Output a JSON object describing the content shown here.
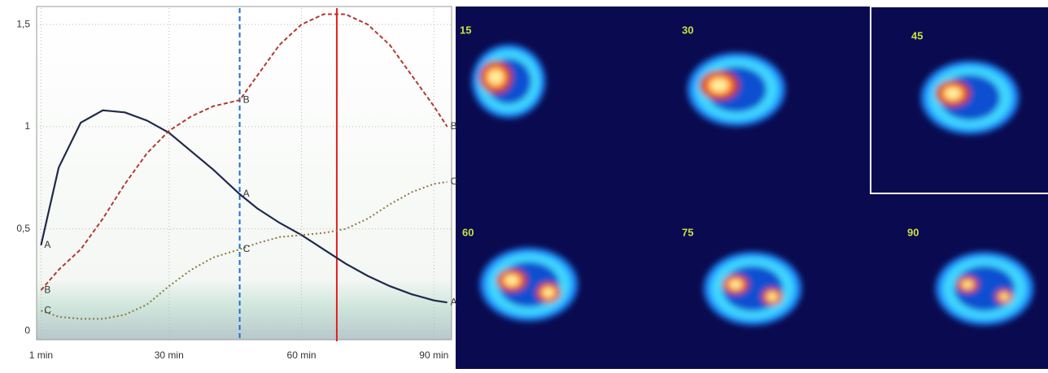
{
  "chart_data": {
    "type": "line",
    "x": [
      1,
      5,
      10,
      15,
      20,
      25,
      30,
      35,
      40,
      46,
      50,
      55,
      60,
      65,
      70,
      75,
      80,
      85,
      90,
      93
    ],
    "series": [
      {
        "name": "A",
        "color": "#1f2a4a",
        "dash": "",
        "values": [
          0.42,
          0.8,
          1.02,
          1.08,
          1.07,
          1.03,
          0.97,
          0.88,
          0.79,
          0.67,
          0.6,
          0.53,
          0.47,
          0.4,
          0.33,
          0.27,
          0.22,
          0.18,
          0.15,
          0.14
        ]
      },
      {
        "name": "B",
        "color": "#b33a2e",
        "dash": "5 3",
        "values": [
          0.2,
          0.3,
          0.4,
          0.55,
          0.72,
          0.87,
          0.98,
          1.05,
          1.1,
          1.13,
          1.25,
          1.4,
          1.5,
          1.55,
          1.55,
          1.5,
          1.4,
          1.25,
          1.1,
          1.0
        ]
      },
      {
        "name": "C",
        "color": "#8a7a3a",
        "dash": "2 3",
        "values": [
          0.1,
          0.07,
          0.06,
          0.06,
          0.08,
          0.13,
          0.22,
          0.3,
          0.36,
          0.4,
          0.43,
          0.46,
          0.47,
          0.48,
          0.5,
          0.55,
          0.62,
          0.68,
          0.72,
          0.73
        ]
      }
    ],
    "markers": [
      {
        "x": 46,
        "color": "#1e6fd0"
      },
      {
        "x": 68,
        "color": "#e02020"
      }
    ],
    "xlim": [
      0,
      94
    ],
    "ylim": [
      -0.05,
      1.58
    ],
    "xticks": [
      {
        "value": 1,
        "label": "1 min"
      },
      {
        "value": 30,
        "label": "30 min"
      },
      {
        "value": 60,
        "label": "60 min"
      },
      {
        "value": 90,
        "label": "90 min"
      }
    ],
    "yticks": [
      0,
      {
        "value": 0.5,
        "label": "0,5"
      },
      1,
      {
        "value": 1.5,
        "label": "1,5"
      }
    ],
    "grid": true
  },
  "images": {
    "labels": [
      "15",
      "30",
      "45",
      "60",
      "75",
      "90"
    ]
  }
}
